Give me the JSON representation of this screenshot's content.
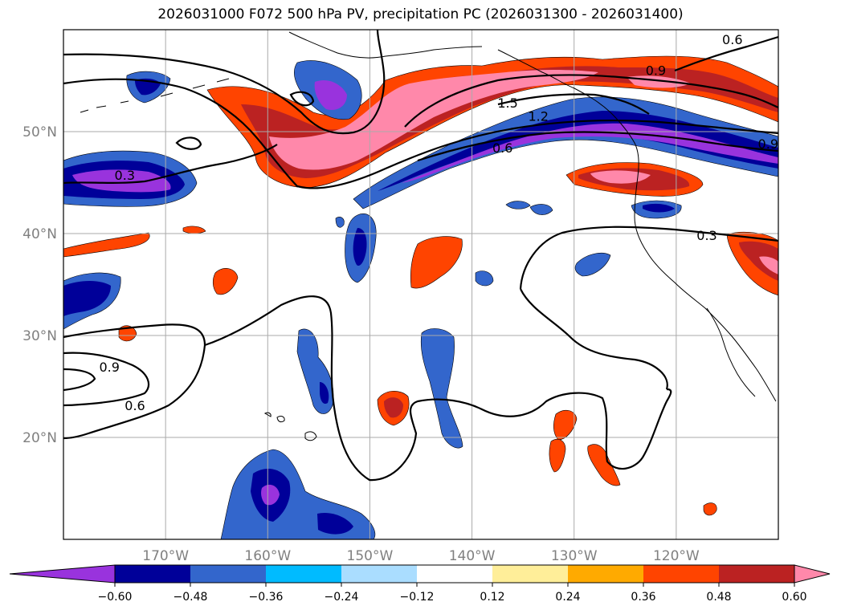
{
  "title": "2026031000 F072 500 hPa PV, precipitation PC (2026031300 - 2026031400)",
  "map": {
    "lon_range": [
      -180,
      -110
    ],
    "lat_range": [
      10,
      60
    ],
    "lat_labels": [
      {
        "lat": 50,
        "label": "50°N"
      },
      {
        "lat": 40,
        "label": "40°N"
      },
      {
        "lat": 30,
        "label": "30°N"
      },
      {
        "lat": 20,
        "label": "20°N"
      }
    ],
    "lon_labels": [
      {
        "lon": -170,
        "label": "170°W"
      },
      {
        "lon": -160,
        "label": "160°W"
      },
      {
        "lon": -150,
        "label": "150°W"
      },
      {
        "lon": -140,
        "label": "140°W"
      },
      {
        "lon": -130,
        "label": "130°W"
      },
      {
        "lon": -120,
        "label": "120°W"
      }
    ],
    "contour_labels": [
      {
        "text": "0.3",
        "lon": -174,
        "lat": 45.5
      },
      {
        "text": "0.6",
        "lon": -137,
        "lat": 48.2
      },
      {
        "text": "1.2",
        "lon": -133.5,
        "lat": 51.3
      },
      {
        "text": "1.5",
        "lon": -136.5,
        "lat": 52.6
      },
      {
        "text": "0.9",
        "lon": -122,
        "lat": 55.8
      },
      {
        "text": "0.6",
        "lon": -114.5,
        "lat": 58.8
      },
      {
        "text": "0.9",
        "lon": -111,
        "lat": 48.6
      },
      {
        "text": "0.3",
        "lon": -117,
        "lat": 39.6
      },
      {
        "text": "0.9",
        "lon": -175.5,
        "lat": 26.7
      },
      {
        "text": "0.6",
        "lon": -173,
        "lat": 22.9
      }
    ]
  },
  "colorbar": {
    "colors": [
      "#9933dd",
      "#000099",
      "#3366cc",
      "#00bbff",
      "#aaddff",
      "#ffffff",
      "#ffee99",
      "#ffaa00",
      "#ff4400",
      "#bb2222",
      "#ff88aa"
    ],
    "ticks": [
      "−0.60",
      "−0.48",
      "−0.36",
      "−0.24",
      "−0.12",
      "0.12",
      "0.24",
      "0.36",
      "0.48",
      "0.60"
    ]
  }
}
